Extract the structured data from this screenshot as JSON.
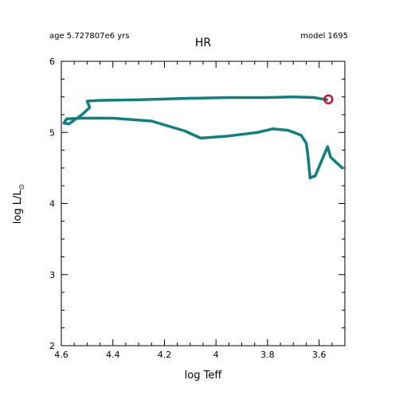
{
  "header": {
    "age_text": "age 5.727807e6 yrs",
    "model_text": "model 1695",
    "title": "HR"
  },
  "chart_data": {
    "type": "line",
    "title": "HR",
    "xlabel": "log Teff",
    "ylabel_main": "log L/L",
    "ylabel_sub": "⊙",
    "xlim": [
      4.6,
      3.5
    ],
    "ylim": [
      2,
      6
    ],
    "x_inverted": true,
    "x_ticks": [
      4.6,
      4.4,
      4.2,
      4.0,
      3.8,
      3.6
    ],
    "x_tick_labels": [
      "4.6",
      "4.4",
      "4.2",
      "4",
      "3.8",
      "3.6"
    ],
    "y_ticks": [
      2,
      3,
      4,
      5,
      6
    ],
    "y_tick_labels": [
      "2",
      "3",
      "4",
      "5",
      "6"
    ],
    "series": [
      {
        "color": "#0f8080",
        "x": [
          3.51,
          3.555,
          3.567,
          3.615,
          3.635,
          3.64,
          3.645,
          3.65,
          3.67,
          3.72,
          3.78,
          3.84,
          3.95,
          4.06,
          4.12,
          4.25,
          4.4,
          4.52,
          4.58,
          4.59,
          4.57,
          4.52,
          4.49,
          4.5,
          4.46,
          4.3,
          4.1,
          3.95,
          3.8,
          3.7,
          3.62,
          3.57
        ],
        "y": [
          4.5,
          4.65,
          4.8,
          4.39,
          4.36,
          4.55,
          4.72,
          4.85,
          4.96,
          5.03,
          5.05,
          5.0,
          4.95,
          4.92,
          5.02,
          5.16,
          5.2,
          5.2,
          5.19,
          5.13,
          5.12,
          5.25,
          5.35,
          5.44,
          5.45,
          5.46,
          5.48,
          5.49,
          5.49,
          5.5,
          5.49,
          5.46
        ]
      }
    ],
    "marker": {
      "x": 3.564,
      "y": 5.465,
      "color": "#cc1133",
      "symbol": "open-circle"
    }
  }
}
